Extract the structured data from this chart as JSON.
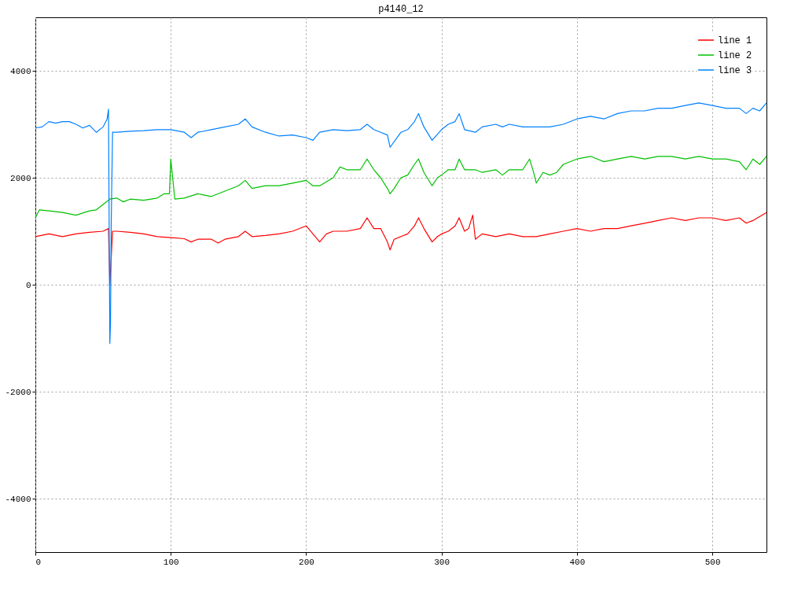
{
  "chart_data": {
    "type": "line",
    "title": "p4140_12",
    "xlim": [
      0,
      540
    ],
    "xticks": [
      0,
      100,
      200,
      300,
      400,
      500
    ],
    "ylim": [
      -5000,
      5000
    ],
    "yticks": [
      -4000,
      -2000,
      0,
      2000,
      4000
    ],
    "grid": true,
    "legend": "top right",
    "marker": "none",
    "line_style": "solid",
    "series": [
      {
        "name": "line 1",
        "color": "#ff0000",
        "x": [
          0,
          10,
          20,
          30,
          40,
          50,
          54,
          55,
          57,
          60,
          70,
          80,
          90,
          100,
          110,
          115,
          120,
          130,
          135,
          140,
          150,
          155,
          160,
          170,
          180,
          190,
          200,
          205,
          210,
          215,
          220,
          230,
          240,
          245,
          250,
          255,
          260,
          262,
          265,
          270,
          275,
          280,
          283,
          287,
          293,
          297,
          300,
          305,
          310,
          313,
          317,
          320,
          323,
          325,
          330,
          340,
          350,
          360,
          370,
          380,
          390,
          400,
          410,
          420,
          430,
          440,
          450,
          460,
          470,
          480,
          490,
          500,
          510,
          520,
          525,
          530,
          540
        ],
        "values": [
          900,
          950,
          900,
          950,
          980,
          1000,
          1050,
          0,
          1000,
          1000,
          980,
          950,
          900,
          880,
          860,
          800,
          850,
          850,
          780,
          850,
          900,
          1000,
          900,
          920,
          950,
          1000,
          1100,
          950,
          800,
          950,
          1000,
          1000,
          1050,
          1250,
          1050,
          1050,
          800,
          650,
          850,
          900,
          950,
          1100,
          1250,
          1050,
          800,
          900,
          950,
          1000,
          1100,
          1250,
          1000,
          1050,
          1300,
          850,
          950,
          900,
          950,
          900,
          900,
          950,
          1000,
          1050,
          1000,
          1050,
          1050,
          1100,
          1150,
          1200,
          1250,
          1200,
          1250,
          1250,
          1200,
          1250,
          1150,
          1200,
          1350
        ]
      },
      {
        "name": "line 2",
        "color": "#00c000",
        "x": [
          0,
          3,
          10,
          20,
          30,
          40,
          45,
          50,
          55,
          60,
          65,
          70,
          80,
          90,
          95,
          99,
          100,
          101,
          103,
          110,
          120,
          130,
          140,
          150,
          155,
          160,
          170,
          180,
          190,
          200,
          205,
          210,
          220,
          225,
          230,
          240,
          245,
          250,
          255,
          260,
          262,
          265,
          270,
          275,
          280,
          283,
          287,
          293,
          297,
          300,
          305,
          310,
          313,
          317,
          325,
          330,
          340,
          345,
          350,
          360,
          365,
          368,
          370,
          375,
          380,
          385,
          390,
          400,
          410,
          420,
          430,
          440,
          450,
          460,
          470,
          480,
          490,
          500,
          510,
          520,
          525,
          530,
          535,
          540
        ],
        "values": [
          1250,
          1400,
          1380,
          1350,
          1300,
          1380,
          1400,
          1500,
          1600,
          1620,
          1550,
          1600,
          1580,
          1620,
          1700,
          1700,
          2350,
          2100,
          1600,
          1620,
          1700,
          1650,
          1750,
          1850,
          1950,
          1800,
          1850,
          1850,
          1900,
          1950,
          1850,
          1850,
          2000,
          2200,
          2150,
          2150,
          2350,
          2150,
          2000,
          1800,
          1700,
          1800,
          2000,
          2050,
          2250,
          2350,
          2100,
          1850,
          2000,
          2050,
          2150,
          2150,
          2350,
          2150,
          2150,
          2100,
          2150,
          2050,
          2150,
          2150,
          2350,
          2100,
          1900,
          2100,
          2050,
          2100,
          2250,
          2350,
          2400,
          2300,
          2350,
          2400,
          2350,
          2400,
          2400,
          2350,
          2400,
          2350,
          2350,
          2300,
          2150,
          2350,
          2250,
          2400
        ]
      },
      {
        "name": "line 3",
        "color": "#0080ff",
        "x": [
          0,
          5,
          10,
          15,
          20,
          25,
          30,
          35,
          40,
          45,
          50,
          53,
          54,
          55,
          55.5,
          56,
          57,
          60,
          70,
          80,
          90,
          100,
          110,
          115,
          120,
          130,
          140,
          150,
          155,
          160,
          170,
          180,
          190,
          200,
          205,
          210,
          220,
          230,
          240,
          245,
          250,
          255,
          260,
          262,
          270,
          275,
          280,
          283,
          287,
          293,
          300,
          305,
          310,
          313,
          317,
          325,
          330,
          340,
          345,
          350,
          360,
          370,
          380,
          390,
          400,
          410,
          420,
          430,
          440,
          450,
          460,
          470,
          480,
          490,
          500,
          510,
          520,
          525,
          530,
          535,
          540
        ],
        "values": [
          2930,
          2950,
          3050,
          3020,
          3050,
          3050,
          3000,
          2930,
          2980,
          2850,
          2950,
          3100,
          3280,
          -1100,
          -700,
          1100,
          2850,
          2850,
          2870,
          2880,
          2900,
          2900,
          2850,
          2750,
          2850,
          2900,
          2950,
          3000,
          3100,
          2950,
          2850,
          2780,
          2800,
          2750,
          2700,
          2850,
          2900,
          2880,
          2900,
          3000,
          2900,
          2850,
          2800,
          2570,
          2850,
          2900,
          3050,
          3200,
          2950,
          2700,
          2900,
          3000,
          3050,
          3200,
          2900,
          2850,
          2950,
          3000,
          2950,
          3000,
          2950,
          2950,
          2950,
          3000,
          3100,
          3150,
          3100,
          3200,
          3250,
          3250,
          3300,
          3300,
          3350,
          3400,
          3350,
          3300,
          3300,
          3200,
          3300,
          3250,
          3400
        ]
      }
    ]
  }
}
